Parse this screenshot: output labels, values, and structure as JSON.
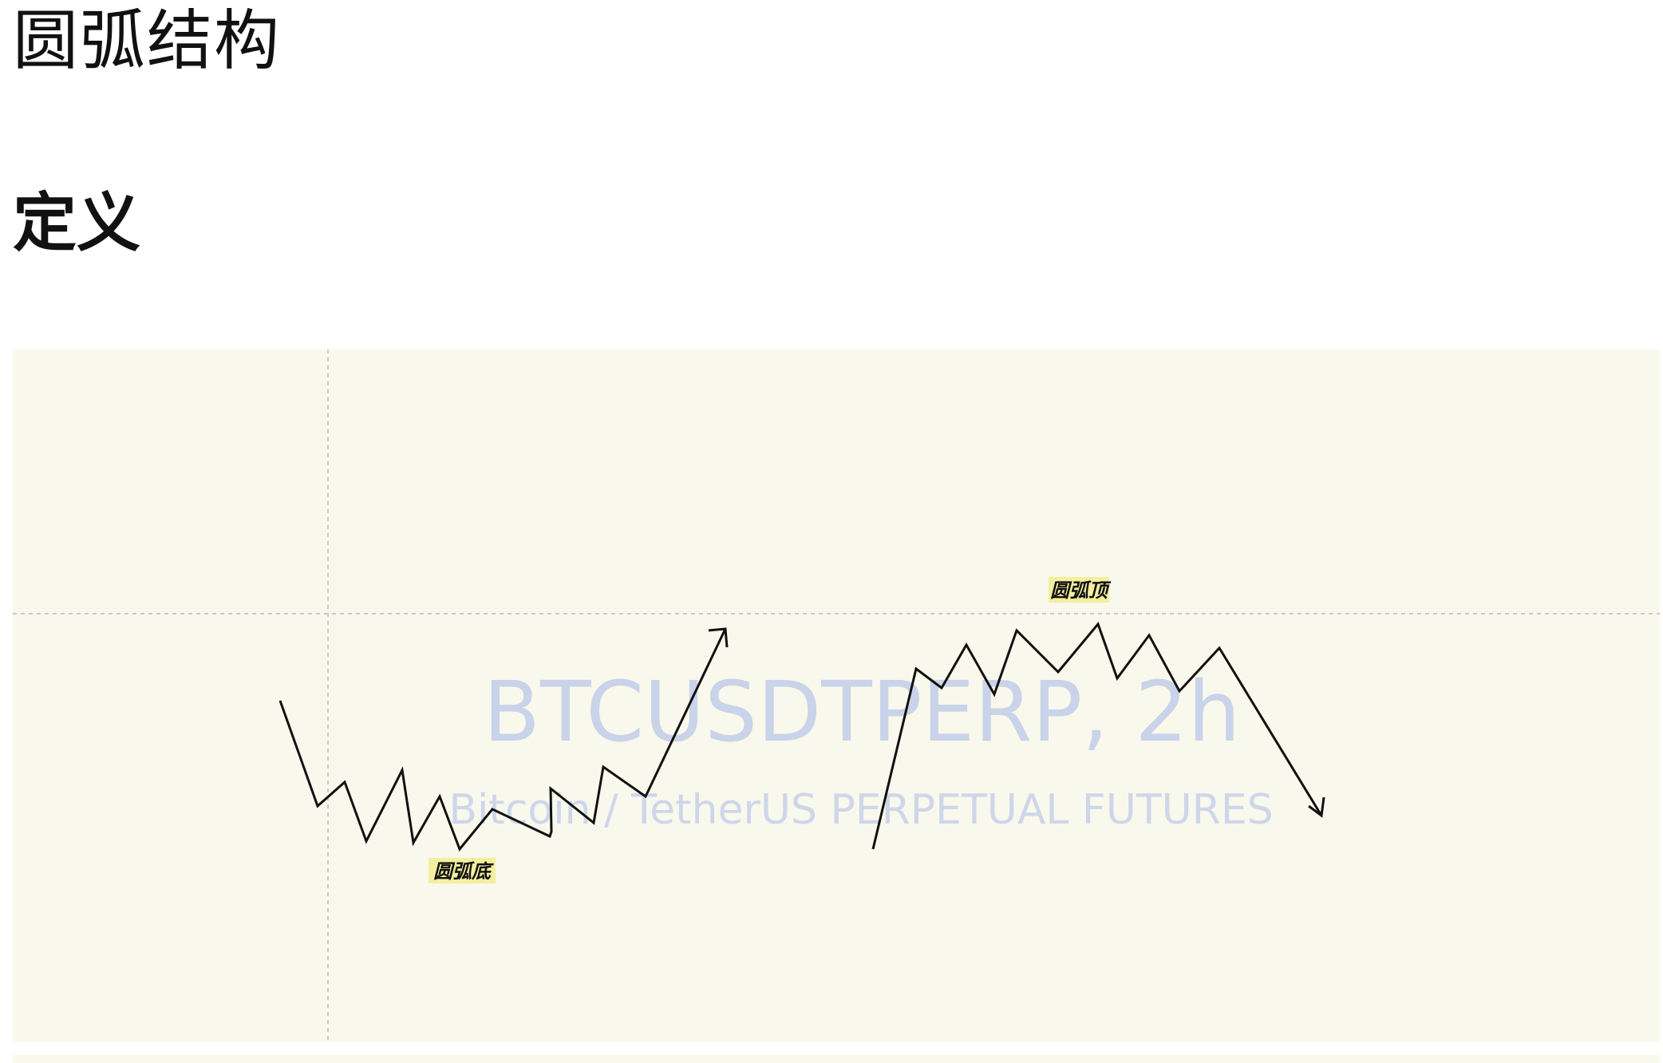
{
  "page": {
    "title": "圆弧结构",
    "section_heading": "定义"
  },
  "figure": {
    "watermark_title": "BTCUSDTPERP, 2h",
    "watermark_subtitle": "Bitcoin / TetherUS PERPETUAL FUTURES",
    "rounding_bottom_label": "圆弧底",
    "rounding_top_label": "圆弧顶",
    "background_color": "#f9f8ec",
    "label_highlight_color": "#f3ef9e"
  }
}
